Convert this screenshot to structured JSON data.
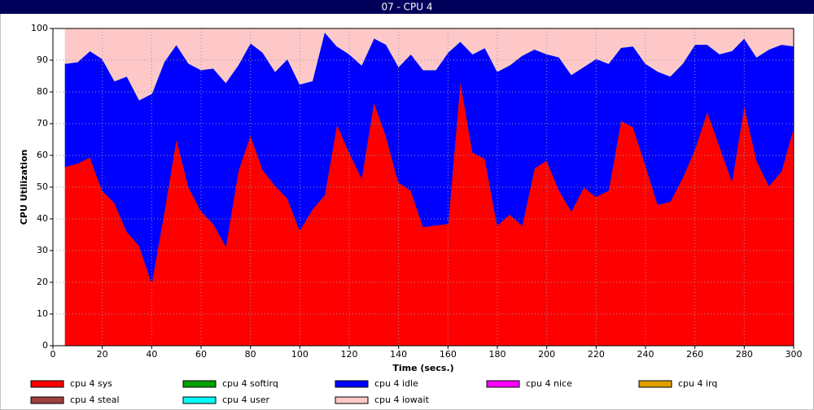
{
  "chart_data": {
    "type": "stacked_area",
    "title": "07 - CPU 4",
    "x_label": "Time (secs.)",
    "y_label": "CPU Utilization",
    "x": [
      5,
      10,
      15,
      20,
      25,
      30,
      35,
      40,
      45,
      50,
      55,
      60,
      65,
      70,
      75,
      80,
      85,
      90,
      95,
      100,
      105,
      110,
      115,
      120,
      125,
      130,
      135,
      140,
      145,
      150,
      155,
      160,
      165,
      170,
      175,
      180,
      185,
      190,
      195,
      200,
      205,
      210,
      215,
      220,
      225,
      230,
      235,
      240,
      245,
      250,
      255,
      260,
      265,
      270,
      275,
      280,
      285,
      290,
      295,
      300
    ],
    "xlim": [
      0,
      300
    ],
    "xticks": [
      0,
      20,
      40,
      60,
      80,
      100,
      120,
      140,
      160,
      180,
      200,
      220,
      240,
      260,
      280,
      300
    ],
    "ylim": [
      0,
      100
    ],
    "yticks": [
      0,
      10,
      20,
      30,
      40,
      50,
      60,
      70,
      80,
      90,
      100
    ],
    "grid": true,
    "series": [
      {
        "name": "cpu 4 sys",
        "color": "#ff0000",
        "values": [
          56.5,
          57.5,
          59.5,
          49,
          45,
          36,
          31.5,
          20,
          42,
          65.5,
          50,
          42.5,
          38.5,
          31.5,
          55,
          66.5,
          55.5,
          50.5,
          46.5,
          36.5,
          43,
          47.5,
          70,
          61,
          53,
          77,
          66,
          51.5,
          49,
          37.5,
          38,
          38.5,
          84,
          61,
          59,
          38,
          41.5,
          38,
          56,
          58.5,
          49,
          42.5,
          50,
          47,
          49,
          71,
          69,
          57,
          44.5,
          45.5,
          53,
          62,
          74,
          63,
          52,
          76,
          58.5,
          50.5,
          55,
          69
        ]
      },
      {
        "name": "cpu 4 softirq",
        "color": "#00a000",
        "values": [
          0,
          0,
          0,
          0,
          0,
          0,
          0,
          0,
          0,
          0,
          0,
          0,
          0,
          0,
          0,
          0,
          0,
          0,
          0,
          0,
          0,
          0,
          0,
          0,
          0,
          0,
          0,
          0,
          0,
          0,
          0,
          0,
          0,
          0,
          0,
          0,
          0,
          0,
          0,
          0,
          0,
          0,
          0,
          0,
          0,
          0,
          0,
          0,
          0,
          0,
          0,
          0,
          0,
          0,
          0,
          0,
          0,
          0,
          0,
          0
        ]
      },
      {
        "name": "cpu 4 idle",
        "color": "#0000ff",
        "values": [
          32.5,
          32,
          33.5,
          41.5,
          38.5,
          49,
          46,
          59.5,
          47.5,
          29.5,
          39,
          44.5,
          49,
          51.5,
          33.5,
          29,
          37,
          36,
          44,
          46,
          40.5,
          51.5,
          24.5,
          31,
          35.5,
          20,
          29,
          36.5,
          43,
          49.5,
          49,
          54,
          12,
          31,
          35,
          48.5,
          47,
          53.5,
          37.5,
          33.5,
          42,
          43,
          38,
          43.5,
          40,
          23,
          25.5,
          32,
          42,
          39.5,
          36,
          33,
          21,
          29,
          41,
          21,
          32.5,
          43,
          40,
          25.5
        ]
      },
      {
        "name": "cpu 4 nice",
        "color": "#ff00ff",
        "values": [
          0,
          0,
          0,
          0,
          0,
          0,
          0,
          0,
          0,
          0,
          0,
          0,
          0,
          0,
          0,
          0,
          0,
          0,
          0,
          0,
          0,
          0,
          0,
          0,
          0,
          0,
          0,
          0,
          0,
          0,
          0,
          0,
          0,
          0,
          0,
          0,
          0,
          0,
          0,
          0,
          0,
          0,
          0,
          0,
          0,
          0,
          0,
          0,
          0,
          0,
          0,
          0,
          0,
          0,
          0,
          0,
          0,
          0,
          0,
          0
        ]
      },
      {
        "name": "cpu 4 irq",
        "color": "#e0a000",
        "values": [
          0,
          0,
          0,
          0,
          0,
          0,
          0,
          0,
          0,
          0,
          0,
          0,
          0,
          0,
          0,
          0,
          0,
          0,
          0,
          0,
          0,
          0,
          0,
          0,
          0,
          0,
          0,
          0,
          0,
          0,
          0,
          0,
          0,
          0,
          0,
          0,
          0,
          0,
          0,
          0,
          0,
          0,
          0,
          0,
          0,
          0,
          0,
          0,
          0,
          0,
          0,
          0,
          0,
          0,
          0,
          0,
          0,
          0,
          0,
          0
        ]
      },
      {
        "name": "cpu 4 steal",
        "color": "#a04040",
        "values": [
          0,
          0,
          0,
          0,
          0,
          0,
          0,
          0,
          0,
          0,
          0,
          0,
          0,
          0,
          0,
          0,
          0,
          0,
          0,
          0,
          0,
          0,
          0,
          0,
          0,
          0,
          0,
          0,
          0,
          0,
          0,
          0,
          0,
          0,
          0,
          0,
          0,
          0,
          0,
          0,
          0,
          0,
          0,
          0,
          0,
          0,
          0,
          0,
          0,
          0,
          0,
          0,
          0,
          0,
          0,
          0,
          0,
          0,
          0,
          0
        ]
      },
      {
        "name": "cpu 4 user",
        "color": "#00ffff",
        "values": [
          0,
          0,
          0,
          0,
          0,
          0,
          0,
          0,
          0,
          0,
          0,
          0,
          0,
          0,
          0,
          0,
          0,
          0,
          0,
          0,
          0,
          0,
          0,
          0,
          0,
          0,
          0,
          0,
          0,
          0,
          0,
          0,
          0,
          0,
          0,
          0,
          0,
          0,
          0,
          0,
          0,
          0,
          0,
          0,
          0,
          0,
          0,
          0,
          0,
          0,
          0,
          0,
          0,
          0,
          0,
          0,
          0,
          0,
          0,
          0
        ]
      },
      {
        "name": "cpu 4 iowait",
        "color": "#ffc8c8",
        "values": [
          11,
          10.5,
          7,
          9.5,
          16.5,
          15,
          22.5,
          20.5,
          10.5,
          5,
          11,
          13,
          12.5,
          17,
          11.5,
          4.5,
          7.5,
          13.5,
          9.5,
          17.5,
          16.5,
          1,
          5.5,
          8,
          11.5,
          3,
          5,
          12,
          8,
          13,
          13,
          7.5,
          4,
          8,
          6,
          13.5,
          11.5,
          8.5,
          6.5,
          8,
          9,
          14.5,
          12,
          9.5,
          11,
          6,
          5.5,
          11,
          13.5,
          15,
          11,
          5,
          5,
          8,
          7,
          3,
          9,
          6.5,
          5,
          5.5
        ]
      }
    ]
  }
}
